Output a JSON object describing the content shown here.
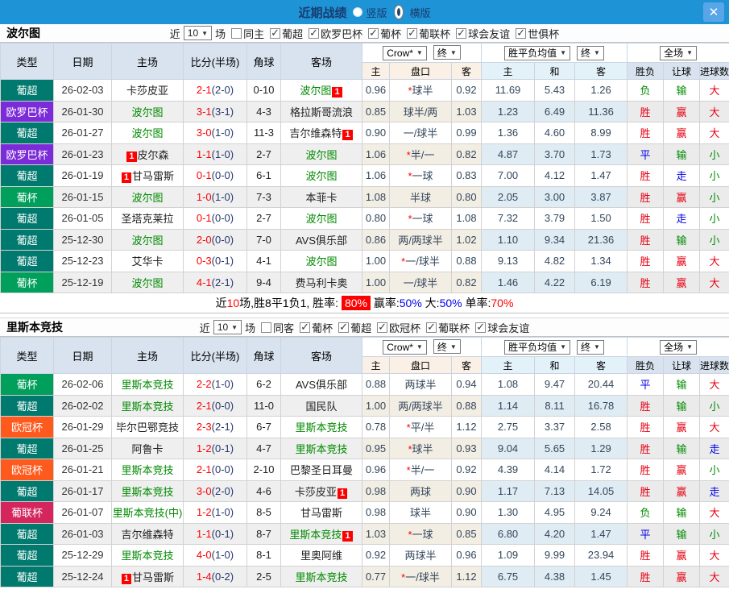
{
  "titlebar": {
    "title": "近期战绩",
    "vertical_label": "竖版",
    "horizontal_label": "横版",
    "selected_layout": "横版",
    "close_glyph": "✕",
    "bar_color": "#1E93D6",
    "close_button_color": "#58A6E8"
  },
  "columns": {
    "main": [
      "类型",
      "日期",
      "主场",
      "比分(半场)",
      "角球",
      "客场"
    ],
    "company_select": "Crow*",
    "end_select": "终",
    "wdl_select": "胜平负均值",
    "full_select": "全场",
    "sub": [
      "主",
      "盘口",
      "客",
      "主",
      "和",
      "客",
      "胜负",
      "让球",
      "进球数"
    ]
  },
  "league_colors": {
    "葡超": "#00796E",
    "欧罗巴杯": "#7C2BD9",
    "葡杯": "#00A05C",
    "欧冠杯": "#FF5A1E",
    "葡联杯": "#D4265C"
  },
  "result_colors": {
    "胜": "#E60012",
    "赢": "#E60012",
    "大": "#E60012",
    "负": "#008A00",
    "输": "#008A00",
    "小": "#008A00",
    "平": "#0000E6",
    "走": "#0000E6"
  },
  "score_colors": {
    "full": "#FF0000",
    "half": "#28386E"
  },
  "self_team_color": "#008A00",
  "badge_color": "#FF0000",
  "sections": [
    {
      "team": "波尔图",
      "filter": {
        "prefix": "近",
        "n": "10",
        "suffix": "场",
        "toggle": "同主",
        "toggle_checked": false,
        "leagues": [
          "葡超",
          "欧罗巴杯",
          "葡杯",
          "葡联杯",
          "球会友谊",
          "世俱杯"
        ]
      },
      "rows": [
        {
          "lg": "葡超",
          "date": "26-02-03",
          "home": {
            "n": "卡莎皮亚"
          },
          "ft": "2-1",
          "ht": "(2-0)",
          "cn": "0-10",
          "away": {
            "n": "波尔图",
            "self": true,
            "badge": "1"
          },
          "h1": "0.96",
          "hd": "*球半",
          "h2": "0.92",
          "e1": "11.69",
          "e2": "5.43",
          "e3": "1.26",
          "r": [
            "负",
            "输",
            "大"
          ]
        },
        {
          "lg": "欧罗巴杯",
          "date": "26-01-30",
          "home": {
            "n": "波尔图",
            "self": true
          },
          "ft": "3-1",
          "ht": "(3-1)",
          "cn": "4-3",
          "away": {
            "n": "格拉斯哥流浪"
          },
          "h1": "0.85",
          "hd": "球半/两",
          "h2": "1.03",
          "e1": "1.23",
          "e2": "6.49",
          "e3": "11.36",
          "r": [
            "胜",
            "赢",
            "大"
          ]
        },
        {
          "lg": "葡超",
          "date": "26-01-27",
          "home": {
            "n": "波尔图",
            "self": true
          },
          "ft": "3-0",
          "ht": "(1-0)",
          "cn": "11-3",
          "away": {
            "n": "吉尔维森特",
            "badge": "1"
          },
          "h1": "0.90",
          "hd": "一/球半",
          "h2": "0.99",
          "e1": "1.36",
          "e2": "4.60",
          "e3": "8.99",
          "r": [
            "胜",
            "赢",
            "大"
          ]
        },
        {
          "lg": "欧罗巴杯",
          "date": "26-01-23",
          "home": {
            "n": "皮尔森",
            "badge": "1"
          },
          "ft": "1-1",
          "ht": "(1-0)",
          "cn": "2-7",
          "away": {
            "n": "波尔图",
            "self": true
          },
          "h1": "1.06",
          "hd": "*半/一",
          "h2": "0.82",
          "e1": "4.87",
          "e2": "3.70",
          "e3": "1.73",
          "r": [
            "平",
            "输",
            "小"
          ]
        },
        {
          "lg": "葡超",
          "date": "26-01-19",
          "home": {
            "n": "甘马雷斯",
            "badge": "1"
          },
          "ft": "0-1",
          "ht": "(0-0)",
          "cn": "6-1",
          "away": {
            "n": "波尔图",
            "self": true
          },
          "h1": "1.06",
          "hd": "*一球",
          "h2": "0.83",
          "e1": "7.00",
          "e2": "4.12",
          "e3": "1.47",
          "r": [
            "胜",
            "走",
            "小"
          ]
        },
        {
          "lg": "葡杯",
          "date": "26-01-15",
          "home": {
            "n": "波尔图",
            "self": true
          },
          "ft": "1-0",
          "ht": "(1-0)",
          "cn": "7-3",
          "away": {
            "n": "本菲卡"
          },
          "h1": "1.08",
          "hd": "半球",
          "h2": "0.80",
          "e1": "2.05",
          "e2": "3.00",
          "e3": "3.87",
          "r": [
            "胜",
            "赢",
            "小"
          ]
        },
        {
          "lg": "葡超",
          "date": "26-01-05",
          "home": {
            "n": "圣塔克莱拉"
          },
          "ft": "0-1",
          "ht": "(0-0)",
          "cn": "2-7",
          "away": {
            "n": "波尔图",
            "self": true
          },
          "h1": "0.80",
          "hd": "*一球",
          "h2": "1.08",
          "e1": "7.32",
          "e2": "3.79",
          "e3": "1.50",
          "r": [
            "胜",
            "走",
            "小"
          ]
        },
        {
          "lg": "葡超",
          "date": "25-12-30",
          "home": {
            "n": "波尔图",
            "self": true
          },
          "ft": "2-0",
          "ht": "(0-0)",
          "cn": "7-0",
          "away": {
            "n": "AVS俱乐部"
          },
          "h1": "0.86",
          "hd": "两/两球半",
          "h2": "1.02",
          "e1": "1.10",
          "e2": "9.34",
          "e3": "21.36",
          "r": [
            "胜",
            "输",
            "小"
          ]
        },
        {
          "lg": "葡超",
          "date": "25-12-23",
          "home": {
            "n": "艾华卡"
          },
          "ft": "0-3",
          "ht": "(0-1)",
          "cn": "4-1",
          "away": {
            "n": "波尔图",
            "self": true
          },
          "h1": "1.00",
          "hd": "*一/球半",
          "h2": "0.88",
          "e1": "9.13",
          "e2": "4.82",
          "e3": "1.34",
          "r": [
            "胜",
            "赢",
            "大"
          ]
        },
        {
          "lg": "葡杯",
          "date": "25-12-19",
          "home": {
            "n": "波尔图",
            "self": true
          },
          "ft": "4-1",
          "ht": "(2-1)",
          "cn": "9-4",
          "away": {
            "n": "费马利卡奥"
          },
          "h1": "1.00",
          "hd": "一/球半",
          "h2": "0.82",
          "e1": "1.46",
          "e2": "4.22",
          "e3": "6.19",
          "r": [
            "胜",
            "赢",
            "大"
          ]
        }
      ],
      "summary_parts": [
        {
          "t": "近",
          "c": "#000000"
        },
        {
          "t": "10",
          "c": "#FF0000"
        },
        {
          "t": "场,胜8平1负1, 胜率: ",
          "c": "#000000"
        },
        {
          "t": "80%",
          "c": "#FFFFFF",
          "bg": "#FF0000"
        },
        {
          "t": " 赢率:",
          "c": "#000000"
        },
        {
          "t": "50%",
          "c": "#0000EE"
        },
        {
          "t": " 大:",
          "c": "#000000"
        },
        {
          "t": "50%",
          "c": "#0000EE"
        },
        {
          "t": " 单率:",
          "c": "#000000"
        },
        {
          "t": "70%",
          "c": "#FF0000"
        }
      ]
    },
    {
      "team": "里斯本竞技",
      "filter": {
        "prefix": "近",
        "n": "10",
        "suffix": "场",
        "toggle": "同客",
        "toggle_checked": false,
        "leagues": [
          "葡杯",
          "葡超",
          "欧冠杯",
          "葡联杯",
          "球会友谊"
        ]
      },
      "rows": [
        {
          "lg": "葡杯",
          "date": "26-02-06",
          "home": {
            "n": "里斯本竞技",
            "self": true
          },
          "ft": "2-2",
          "ht": "(1-0)",
          "cn": "6-2",
          "away": {
            "n": "AVS俱乐部"
          },
          "h1": "0.88",
          "hd": "两球半",
          "h2": "0.94",
          "e1": "1.08",
          "e2": "9.47",
          "e3": "20.44",
          "r": [
            "平",
            "输",
            "大"
          ]
        },
        {
          "lg": "葡超",
          "date": "26-02-02",
          "home": {
            "n": "里斯本竞技",
            "self": true
          },
          "ft": "2-1",
          "ht": "(0-0)",
          "cn": "11-0",
          "away": {
            "n": "国民队"
          },
          "h1": "1.00",
          "hd": "两/两球半",
          "h2": "0.88",
          "e1": "1.14",
          "e2": "8.11",
          "e3": "16.78",
          "r": [
            "胜",
            "输",
            "小"
          ]
        },
        {
          "lg": "欧冠杯",
          "date": "26-01-29",
          "home": {
            "n": "毕尔巴鄂竞技"
          },
          "ft": "2-3",
          "ht": "(2-1)",
          "cn": "6-7",
          "away": {
            "n": "里斯本竞技",
            "self": true
          },
          "h1": "0.78",
          "hd": "*平/半",
          "h2": "1.12",
          "e1": "2.75",
          "e2": "3.37",
          "e3": "2.58",
          "r": [
            "胜",
            "赢",
            "大"
          ]
        },
        {
          "lg": "葡超",
          "date": "26-01-25",
          "home": {
            "n": "阿鲁卡"
          },
          "ft": "1-2",
          "ht": "(0-1)",
          "cn": "4-7",
          "away": {
            "n": "里斯本竞技",
            "self": true
          },
          "h1": "0.95",
          "hd": "*球半",
          "h2": "0.93",
          "e1": "9.04",
          "e2": "5.65",
          "e3": "1.29",
          "r": [
            "胜",
            "输",
            "走"
          ]
        },
        {
          "lg": "欧冠杯",
          "date": "26-01-21",
          "home": {
            "n": "里斯本竞技",
            "self": true
          },
          "ft": "2-1",
          "ht": "(0-0)",
          "cn": "2-10",
          "away": {
            "n": "巴黎圣日耳曼"
          },
          "h1": "0.96",
          "hd": "*半/一",
          "h2": "0.92",
          "e1": "4.39",
          "e2": "4.14",
          "e3": "1.72",
          "r": [
            "胜",
            "赢",
            "小"
          ]
        },
        {
          "lg": "葡超",
          "date": "26-01-17",
          "home": {
            "n": "里斯本竞技",
            "self": true
          },
          "ft": "3-0",
          "ht": "(2-0)",
          "cn": "4-6",
          "away": {
            "n": "卡莎皮亚",
            "badge": "1"
          },
          "h1": "0.98",
          "hd": "两球",
          "h2": "0.90",
          "e1": "1.17",
          "e2": "7.13",
          "e3": "14.05",
          "r": [
            "胜",
            "赢",
            "走"
          ]
        },
        {
          "lg": "葡联杯",
          "date": "26-01-07",
          "home": {
            "n": "里斯本竞技(中)",
            "self": true
          },
          "ft": "1-2",
          "ht": "(1-0)",
          "cn": "8-5",
          "away": {
            "n": "甘马雷斯"
          },
          "h1": "0.98",
          "hd": "球半",
          "h2": "0.90",
          "e1": "1.30",
          "e2": "4.95",
          "e3": "9.24",
          "r": [
            "负",
            "输",
            "大"
          ]
        },
        {
          "lg": "葡超",
          "date": "26-01-03",
          "home": {
            "n": "吉尔维森特"
          },
          "ft": "1-1",
          "ht": "(0-1)",
          "cn": "8-7",
          "away": {
            "n": "里斯本竞技",
            "self": true,
            "badge": "1"
          },
          "h1": "1.03",
          "hd": "*一球",
          "h2": "0.85",
          "e1": "6.80",
          "e2": "4.20",
          "e3": "1.47",
          "r": [
            "平",
            "输",
            "小"
          ]
        },
        {
          "lg": "葡超",
          "date": "25-12-29",
          "home": {
            "n": "里斯本竞技",
            "self": true
          },
          "ft": "4-0",
          "ht": "(1-0)",
          "cn": "8-1",
          "away": {
            "n": "里奥阿维"
          },
          "h1": "0.92",
          "hd": "两球半",
          "h2": "0.96",
          "e1": "1.09",
          "e2": "9.99",
          "e3": "23.94",
          "r": [
            "胜",
            "赢",
            "大"
          ]
        },
        {
          "lg": "葡超",
          "date": "25-12-24",
          "home": {
            "n": "甘马雷斯",
            "badge": "1"
          },
          "ft": "1-4",
          "ht": "(0-2)",
          "cn": "2-5",
          "away": {
            "n": "里斯本竞技",
            "self": true
          },
          "h1": "0.77",
          "hd": "*一/球半",
          "h2": "1.12",
          "e1": "6.75",
          "e2": "4.38",
          "e3": "1.45",
          "r": [
            "胜",
            "赢",
            "大"
          ]
        }
      ]
    }
  ]
}
